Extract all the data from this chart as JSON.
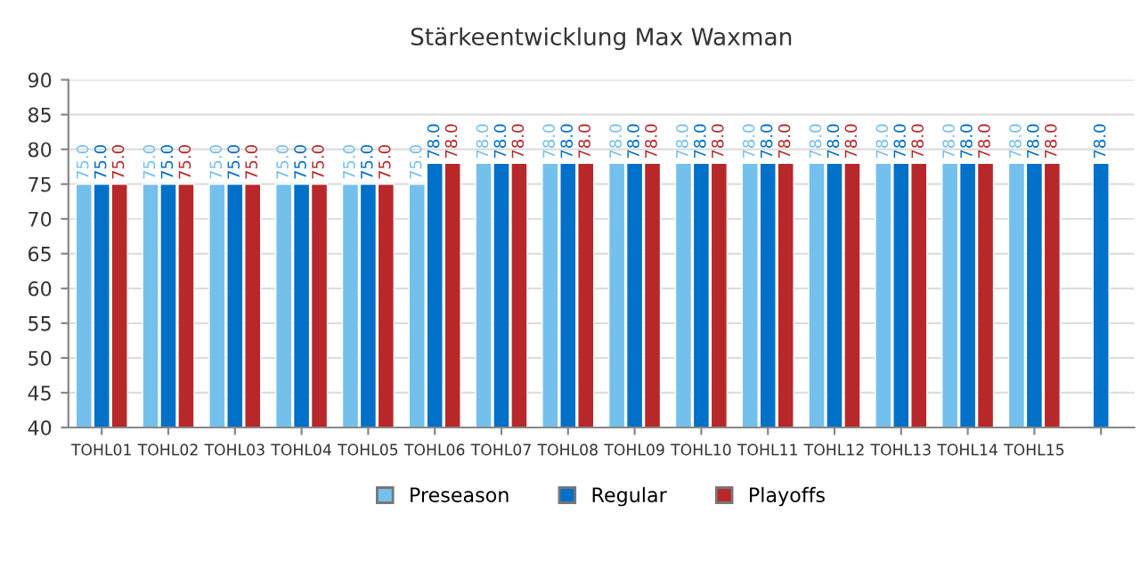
{
  "chart_data": {
    "type": "bar",
    "title": "Stärkeentwicklung Max Waxman",
    "categories": [
      "TOHL01",
      "TOHL02",
      "TOHL03",
      "TOHL04",
      "TOHL05",
      "TOHL06",
      "TOHL07",
      "TOHL08",
      "TOHL09",
      "TOHL10",
      "TOHL11",
      "TOHL12",
      "TOHL13",
      "TOHL14",
      "TOHL15",
      null
    ],
    "series": [
      {
        "name": "Preseason",
        "color": "#74c0ec",
        "values": [
          75,
          75,
          75,
          75,
          75,
          75,
          78,
          78,
          78,
          78,
          78,
          78,
          78,
          78,
          78,
          null
        ],
        "value_labels": [
          "75.0",
          "75.0",
          "75.0",
          "75.0",
          "75.0",
          "75.0",
          "78.0",
          "78.0",
          "78.0",
          "78.0",
          "78.0",
          "78.0",
          "78.0",
          "78.0",
          "78.0",
          null
        ]
      },
      {
        "name": "Regular",
        "color": "#0070c8",
        "values": [
          75,
          75,
          75,
          75,
          75,
          78,
          78,
          78,
          78,
          78,
          78,
          78,
          78,
          78,
          78,
          78
        ],
        "value_labels": [
          "75.0",
          "75.0",
          "75.0",
          "75.0",
          "75.0",
          "78.0",
          "78.0",
          "78.0",
          "78.0",
          "78.0",
          "78.0",
          "78.0",
          "78.0",
          "78.0",
          "78.0",
          "78.0"
        ]
      },
      {
        "name": "Playoffs",
        "color": "#b8282a",
        "values": [
          75,
          75,
          75,
          75,
          75,
          78,
          78,
          78,
          78,
          78,
          78,
          78,
          78,
          78,
          78,
          null
        ],
        "value_labels": [
          "75.0",
          "75.0",
          "75.0",
          "75.0",
          "75.0",
          "78.0",
          "78.0",
          "78.0",
          "78.0",
          "78.0",
          "78.0",
          "78.0",
          "78.0",
          "78.0",
          "78.0",
          null
        ]
      }
    ],
    "ylim": [
      40,
      90
    ],
    "yticks": [
      40,
      45,
      50,
      55,
      60,
      65,
      70,
      75,
      80,
      85,
      90
    ],
    "grid": "y",
    "legend": "bottom"
  }
}
